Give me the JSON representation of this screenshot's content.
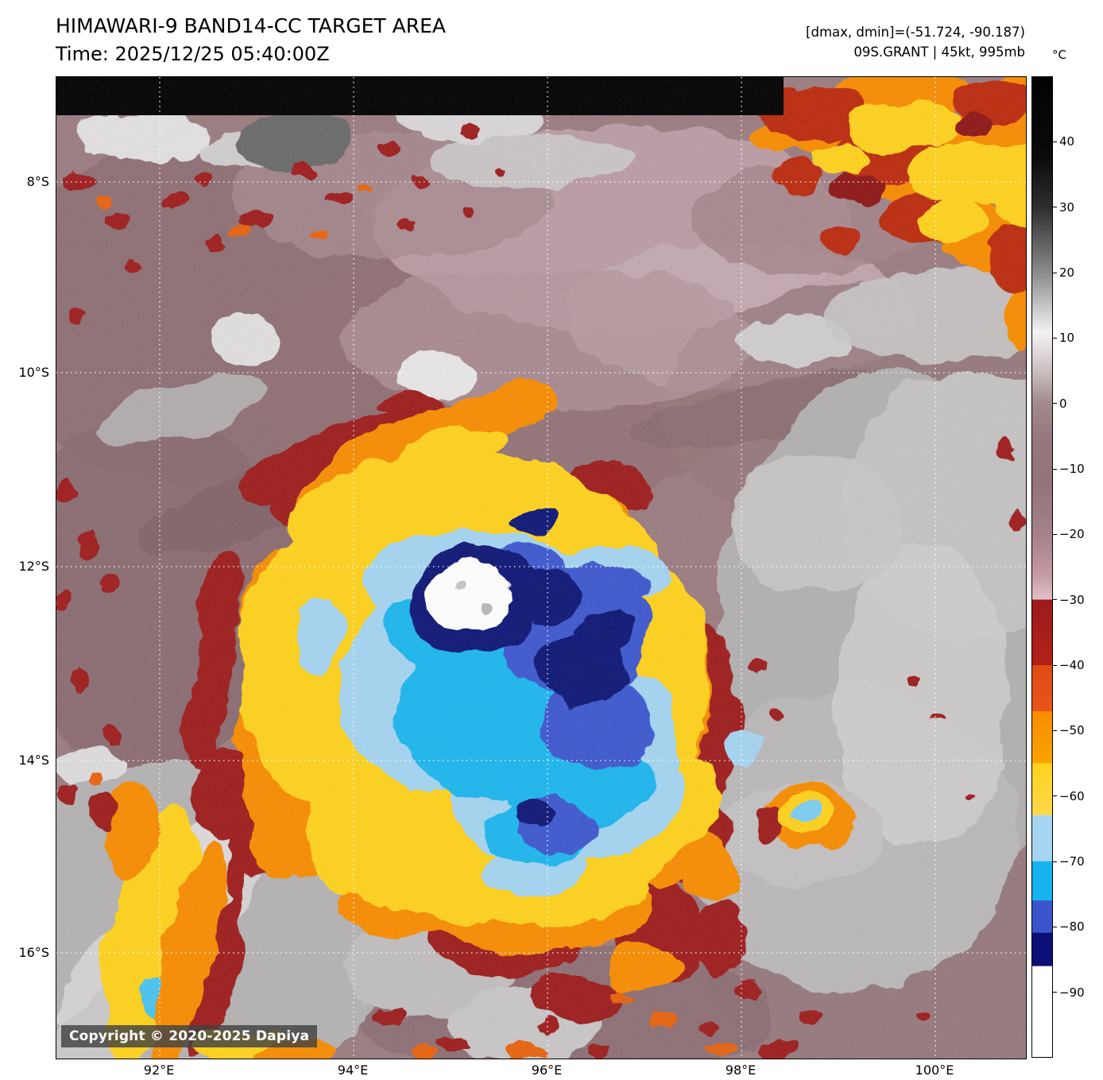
{
  "header": {
    "title": "HIMAWARI-9 BAND14-CC TARGET AREA",
    "time": "Time: 2025/12/25 05:40:00Z",
    "dmax_dmin": "[dmax, dmin]=(-51.724, -90.187)",
    "storm": "09S.GRANT | 45kt, 995mb"
  },
  "map": {
    "x_ticks": [
      "92°E",
      "94°E",
      "96°E",
      "98°E",
      "100°E"
    ],
    "y_ticks": [
      "8°S",
      "10°S",
      "12°S",
      "14°S",
      "16°S"
    ],
    "copyright": "Copyright © 2020-2025 Dapiya"
  },
  "colorbar": {
    "unit": "°C",
    "range": [
      50,
      -100
    ],
    "ticks": [
      {
        "label": "40",
        "value": 40
      },
      {
        "label": "30",
        "value": 30
      },
      {
        "label": "20",
        "value": 20
      },
      {
        "label": "10",
        "value": 10
      },
      {
        "label": "0",
        "value": 0
      },
      {
        "label": "−10",
        "value": -10
      },
      {
        "label": "−20",
        "value": -20
      },
      {
        "label": "−30",
        "value": -30
      },
      {
        "label": "−40",
        "value": -40
      },
      {
        "label": "−50",
        "value": -50
      },
      {
        "label": "−60",
        "value": -60
      },
      {
        "label": "−70",
        "value": -70
      },
      {
        "label": "−80",
        "value": -80
      },
      {
        "label": "−90",
        "value": -90
      }
    ],
    "stops": [
      [
        0,
        "#020202"
      ],
      [
        8,
        "#0a0a0a"
      ],
      [
        13.3,
        "#2e2e2e"
      ],
      [
        20,
        "#8c8c8c"
      ],
      [
        26,
        "#f2f2f2"
      ],
      [
        26.7,
        "#eeeaea"
      ],
      [
        30,
        "#cbbfc0"
      ],
      [
        33.3,
        "#a18a8d"
      ],
      [
        36.7,
        "#97797d"
      ],
      [
        41.3,
        "#937479"
      ],
      [
        46.7,
        "#a5818a"
      ],
      [
        50.7,
        "#c39aa4"
      ],
      [
        53.3,
        "#e3bfc7"
      ],
      [
        53.35,
        "#9c1a1d"
      ],
      [
        60,
        "#b22217"
      ],
      [
        60.05,
        "#e04b15"
      ],
      [
        64.7,
        "#e8561a"
      ],
      [
        64.75,
        "#f88c00"
      ],
      [
        70,
        "#f9a400"
      ],
      [
        70.05,
        "#ffd21e"
      ],
      [
        75.3,
        "#ffd84a"
      ],
      [
        75.35,
        "#a6d5f2"
      ],
      [
        80,
        "#a6d5f2"
      ],
      [
        80.05,
        "#16b4ee"
      ],
      [
        84,
        "#16b4ee"
      ],
      [
        84.05,
        "#3a55cc"
      ],
      [
        87.3,
        "#3a55cc"
      ],
      [
        87.35,
        "#0b1076"
      ],
      [
        90.7,
        "#0b1076"
      ],
      [
        90.75,
        "#ffffff"
      ],
      [
        100,
        "#ffffff"
      ]
    ]
  }
}
